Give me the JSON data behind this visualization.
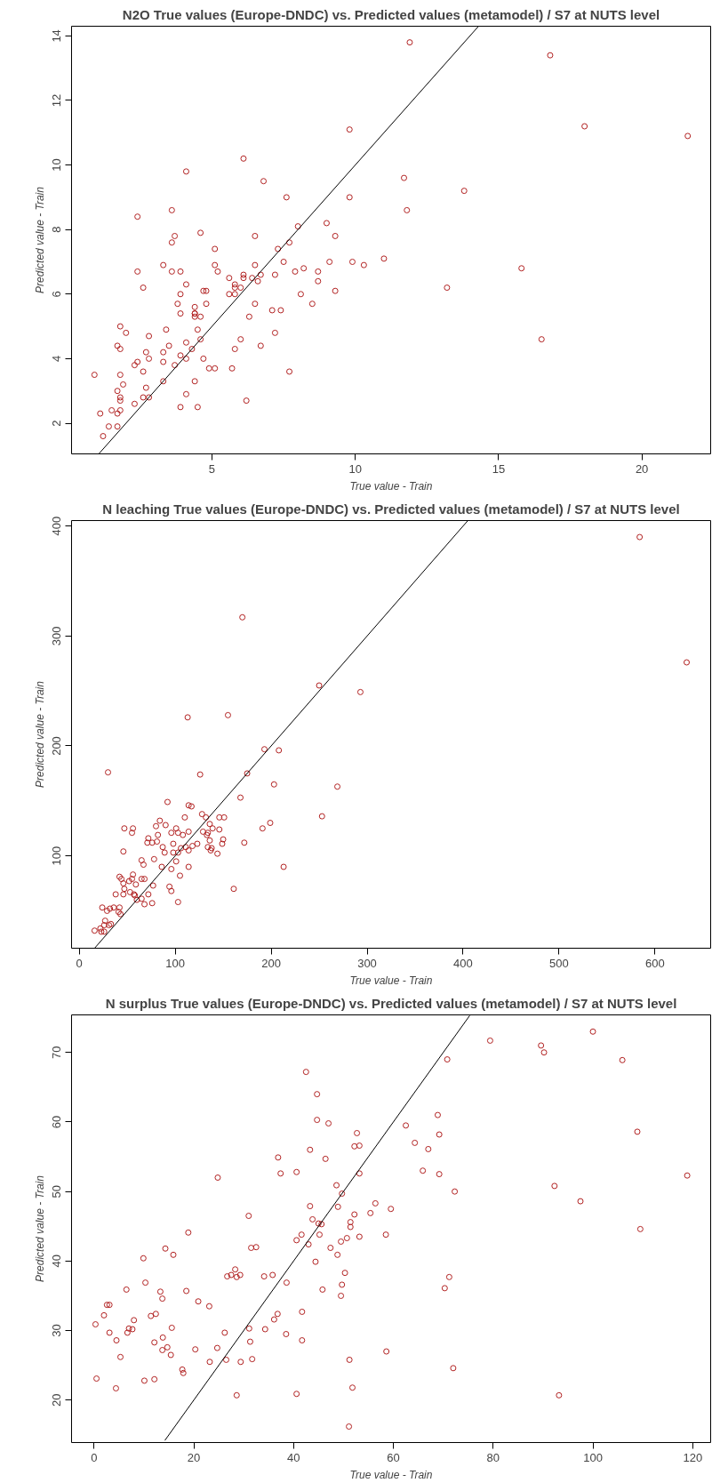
{
  "chart_data": [
    {
      "type": "scatter",
      "title": "N2O True values (Europe-DNDC) vs. Predicted values (metamodel) / S7 at NUTS level",
      "xlabel": "True value - Train",
      "ylabel": "Predicted value - Train",
      "xlim": [
        0.1,
        22.4
      ],
      "ylim": [
        1.05,
        14.3
      ],
      "xticks": [
        5,
        10,
        15,
        20
      ],
      "yticks": [
        2,
        4,
        6,
        8,
        10,
        12,
        14
      ],
      "grid": false,
      "marker": "circle",
      "series": [
        {
          "color": "#b22222",
          "x": [
            11.9,
            16.8,
            18.0,
            21.6,
            9.8,
            6.1,
            4.1,
            6.8,
            11.7,
            13.8,
            7.6,
            9.8,
            3.6,
            11.8,
            2.4,
            9.0,
            8.0,
            4.6,
            3.7,
            6.5,
            9.3,
            3.6,
            7.7,
            7.3,
            5.1,
            11.0,
            7.5,
            9.1,
            9.9,
            10.3,
            3.3,
            5.1,
            6.5,
            5.2,
            3.6,
            3.9,
            7.9,
            8.2,
            8.7,
            2.4,
            15.8,
            5.6,
            6.1,
            6.1,
            6.4,
            6.7,
            7.2,
            6.6,
            8.7,
            4.1,
            2.6,
            5.8,
            5.8,
            6.0,
            4.8,
            4.7,
            5.8,
            9.3,
            13.2,
            3.9,
            5.6,
            8.1,
            3.8,
            8.5,
            4.4,
            4.8,
            6.5,
            4.4,
            4.4,
            4.4,
            3.9,
            4.6,
            7.1,
            7.4,
            6.3,
            1.8,
            3.4,
            4.5,
            2.0,
            2.8,
            4.6,
            6.0,
            7.2,
            16.5,
            1.7,
            3.5,
            4.1,
            1.8,
            4.3,
            5.8,
            6.7,
            3.3,
            2.7,
            3.9,
            4.7,
            2.8,
            4.1,
            2.3,
            2.4,
            3.3,
            3.7,
            2.6,
            4.9,
            5.1,
            5.7,
            0.9,
            1.8,
            7.7,
            1.9,
            3.3,
            4.4,
            2.7,
            1.7,
            2.6,
            4.1,
            1.8,
            2.8,
            1.8,
            6.2,
            2.3,
            3.9,
            4.5,
            1.5,
            1.7,
            1.8,
            1.1,
            1.4,
            1.7,
            1.2
          ],
          "values": [
            13.8,
            13.4,
            11.2,
            10.9,
            11.1,
            10.2,
            9.8,
            9.5,
            9.6,
            9.2,
            9.0,
            9.0,
            8.6,
            8.6,
            8.4,
            8.2,
            8.1,
            7.9,
            7.8,
            7.8,
            7.8,
            7.6,
            7.6,
            7.4,
            7.4,
            7.1,
            7.0,
            7.0,
            7.0,
            6.9,
            6.9,
            6.9,
            6.9,
            6.7,
            6.7,
            6.7,
            6.7,
            6.8,
            6.7,
            6.7,
            6.8,
            6.5,
            6.6,
            6.5,
            6.5,
            6.6,
            6.6,
            6.4,
            6.4,
            6.3,
            6.2,
            6.3,
            6.2,
            6.2,
            6.1,
            6.1,
            6.0,
            6.1,
            6.2,
            6.0,
            6.0,
            6.0,
            5.7,
            5.7,
            5.6,
            5.7,
            5.7,
            5.4,
            5.4,
            5.3,
            5.4,
            5.3,
            5.5,
            5.5,
            5.3,
            5.0,
            4.9,
            4.9,
            4.8,
            4.7,
            4.6,
            4.6,
            4.8,
            4.6,
            4.4,
            4.4,
            4.5,
            4.3,
            4.3,
            4.3,
            4.4,
            4.2,
            4.2,
            4.1,
            4.0,
            4.0,
            4.0,
            3.8,
            3.9,
            3.9,
            3.8,
            3.6,
            3.7,
            3.7,
            3.7,
            3.5,
            3.5,
            3.6,
            3.2,
            3.3,
            3.3,
            3.1,
            3.0,
            2.8,
            2.9,
            2.8,
            2.8,
            2.7,
            2.7,
            2.6,
            2.5,
            2.5,
            2.4,
            2.3,
            2.4,
            2.3,
            1.9,
            1.9,
            1.6
          ]
        },
        {
          "type": "line",
          "marker": "none",
          "color": "#000000",
          "x": [
            1.05,
            14.3
          ],
          "values": [
            1.05,
            14.3
          ]
        }
      ]
    },
    {
      "type": "scatter",
      "title": "N leaching True values (Europe-DNDC) vs. Predicted values (metamodel) / S7 at NUTS level",
      "xlabel": "True value - Train",
      "ylabel": "Predicted value - Train",
      "xlim": [
        -8,
        658
      ],
      "ylim": [
        16,
        405
      ],
      "xticks": [
        0,
        100,
        200,
        300,
        400,
        500,
        600
      ],
      "yticks": [
        100,
        200,
        300,
        400
      ],
      "grid": false,
      "marker": "circle",
      "series": [
        {
          "color": "#b22222",
          "x": [
            584,
            633,
            170,
            250,
            293,
            113,
            155,
            30,
            193,
            208,
            175,
            126,
            203,
            269,
            168,
            92,
            114,
            117,
            110,
            132,
            146,
            151,
            128,
            253,
            84,
            90,
            136,
            199,
            47,
            56,
            55,
            80,
            101,
            139,
            146,
            191,
            96,
            114,
            129,
            108,
            103,
            82,
            133,
            134,
            72,
            136,
            150,
            172,
            71,
            76,
            81,
            98,
            123,
            118,
            111,
            114,
            134,
            137,
            149,
            87,
            106,
            103,
            89,
            144,
            138,
            98,
            46,
            101,
            78,
            65,
            67,
            86,
            114,
            213,
            96,
            105,
            42,
            44,
            56,
            55,
            65,
            68,
            52,
            46,
            59,
            47,
            77,
            94,
            96,
            161,
            38,
            46,
            53,
            57,
            58,
            72,
            65,
            60,
            68,
            76,
            103,
            24,
            36,
            42,
            29,
            32,
            41,
            43,
            27,
            26,
            31,
            33,
            16,
            22,
            23,
            26
          ],
          "values": [
            390,
            276,
            317,
            255,
            249,
            226,
            228,
            176,
            197,
            196,
            175,
            174,
            165,
            163,
            153,
            149,
            146,
            145,
            135,
            135,
            135,
            135,
            138,
            136,
            132,
            128,
            129,
            130,
            125,
            125,
            121,
            127,
            125,
            125,
            124,
            125,
            121,
            122,
            122,
            119,
            121,
            119,
            119,
            121,
            116,
            114,
            115,
            112,
            112,
            112,
            113,
            111,
            111,
            109,
            108,
            105,
            108,
            105,
            111,
            108,
            107,
            103,
            103,
            102,
            107,
            103,
            104,
            95,
            97,
            96,
            92,
            90,
            90,
            90,
            88,
            82,
            81,
            79,
            83,
            79,
            79,
            79,
            77,
            75,
            74,
            70,
            73,
            72,
            68,
            70,
            65,
            65,
            67,
            65,
            64,
            65,
            61,
            60,
            56,
            57,
            58,
            53,
            53,
            53,
            50,
            52,
            49,
            47,
            41,
            37,
            37,
            38,
            32,
            34,
            31,
            31
          ]
        },
        {
          "type": "line",
          "marker": "none",
          "color": "#000000",
          "x": [
            16,
            405
          ],
          "values": [
            16,
            405
          ]
        }
      ]
    },
    {
      "type": "scatter",
      "title": "N surplus True values (Europe-DNDC) vs. Predicted values (metamodel) / S7 at NUTS level",
      "xlabel": "True value - Train",
      "ylabel": "Predicted value - Train",
      "xlim": [
        -4.5,
        123.6
      ],
      "ylim": [
        13.9,
        75.4
      ],
      "xticks": [
        0,
        20,
        40,
        60,
        80,
        100,
        120
      ],
      "yticks": [
        20,
        30,
        40,
        50,
        60,
        70
      ],
      "grid": false,
      "marker": "circle",
      "series": [
        {
          "color": "#b22222",
          "x": [
            79.4,
            100.0,
            89.6,
            90.2,
            70.8,
            105.9,
            42.5,
            44.7,
            44.7,
            47.0,
            62.5,
            68.9,
            52.7,
            69.2,
            108.9,
            64.3,
            52.2,
            53.2,
            67.0,
            43.3,
            36.9,
            46.4,
            37.4,
            40.6,
            53.2,
            65.9,
            69.2,
            24.8,
            118.9,
            48.6,
            92.3,
            72.3,
            49.7,
            97.5,
            56.4,
            43.3,
            48.9,
            59.5,
            55.4,
            52.2,
            31.0,
            43.8,
            45.0,
            45.6,
            51.4,
            51.4,
            109.5,
            18.9,
            41.6,
            45.2,
            58.5,
            53.2,
            40.6,
            50.7,
            49.5,
            43.0,
            14.3,
            31.5,
            32.5,
            15.9,
            47.4,
            48.8,
            9.9,
            44.4,
            50.3,
            71.2,
            28.3,
            26.7,
            27.5,
            28.6,
            29.3,
            34.1,
            35.8,
            10.3,
            38.6,
            49.7,
            6.5,
            45.8,
            70.3,
            13.3,
            18.5,
            49.5,
            13.7,
            20.9,
            2.6,
            3.1,
            23.1,
            2.0,
            12.4,
            11.4,
            36.8,
            41.7,
            36.1,
            8.0,
            0.3,
            7.0,
            7.7,
            15.6,
            31.1,
            34.3,
            6.7,
            26.2,
            3.1,
            13.8,
            38.5,
            4.5,
            12.1,
            31.3,
            41.7,
            13.7,
            14.7,
            20.3,
            24.7,
            58.6,
            15.4,
            5.3,
            23.2,
            26.5,
            31.7,
            29.4,
            51.2,
            72.0,
            17.7,
            17.9,
            0.5,
            10.1,
            12.1,
            4.4,
            51.8,
            28.6,
            40.6,
            93.2,
            51.1
          ],
          "values": [
            71.7,
            73.0,
            71.0,
            70.0,
            69.0,
            68.9,
            67.2,
            64.0,
            60.3,
            59.8,
            59.5,
            61.0,
            58.4,
            58.2,
            58.6,
            57.0,
            56.5,
            56.6,
            56.1,
            56.0,
            54.9,
            54.7,
            52.6,
            52.8,
            52.6,
            53.0,
            52.5,
            52.0,
            52.3,
            50.9,
            50.8,
            50.0,
            49.7,
            48.6,
            48.3,
            47.9,
            47.8,
            47.5,
            46.9,
            46.7,
            46.5,
            46.0,
            45.4,
            45.3,
            45.6,
            44.9,
            44.6,
            44.1,
            43.8,
            43.8,
            43.8,
            43.5,
            43.0,
            43.3,
            42.8,
            42.4,
            41.8,
            41.9,
            42.0,
            40.9,
            41.9,
            40.9,
            40.4,
            39.9,
            38.3,
            37.7,
            38.8,
            37.8,
            38.0,
            37.7,
            38.0,
            37.8,
            38.0,
            36.9,
            36.9,
            36.6,
            35.9,
            35.9,
            36.1,
            35.6,
            35.7,
            35.0,
            34.6,
            34.2,
            33.7,
            33.7,
            33.5,
            32.2,
            32.4,
            32.1,
            32.4,
            32.7,
            31.6,
            31.5,
            30.9,
            30.3,
            30.2,
            30.4,
            30.3,
            30.2,
            29.7,
            29.7,
            29.7,
            29.0,
            29.5,
            28.6,
            28.3,
            28.4,
            28.6,
            27.2,
            27.6,
            27.3,
            27.5,
            27.0,
            26.5,
            26.2,
            25.5,
            25.8,
            25.9,
            25.5,
            25.8,
            24.6,
            24.4,
            23.9,
            23.1,
            22.8,
            23.0,
            21.7,
            21.8,
            20.7,
            20.9,
            20.7,
            16.2
          ]
        },
        {
          "type": "line",
          "marker": "none",
          "color": "#000000",
          "x": [
            14.2,
            75.3
          ],
          "values": [
            14.2,
            75.3
          ]
        }
      ]
    }
  ]
}
